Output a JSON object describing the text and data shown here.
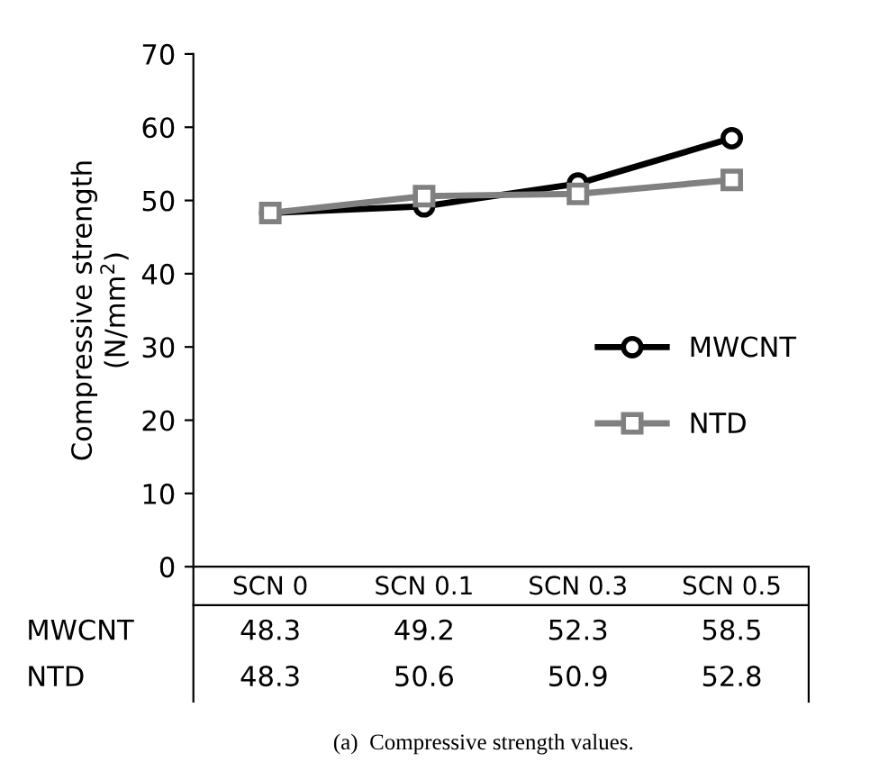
{
  "chart_data": {
    "type": "line",
    "ylabel": "Compressive strength\n(N/mm$^{2}$)",
    "categories": [
      "SCN 0",
      "SCN 0.1",
      "SCN 0.3",
      "SCN 0.5"
    ],
    "series": [
      {
        "name": "MWCNT",
        "color": "#000000",
        "marker": "circle",
        "values": [
          48.3,
          49.2,
          52.3,
          58.5
        ]
      },
      {
        "name": "NTD",
        "color": "#808080",
        "marker": "square",
        "values": [
          48.3,
          50.6,
          50.9,
          52.8
        ]
      }
    ],
    "ylim": [
      0,
      70
    ],
    "yticks": [
      0,
      10,
      20,
      30,
      40,
      50,
      60,
      70
    ],
    "grid": false,
    "legend": "right",
    "data_labels": true,
    "annotations": [
      "(a)  Compressive strength values."
    ]
  }
}
